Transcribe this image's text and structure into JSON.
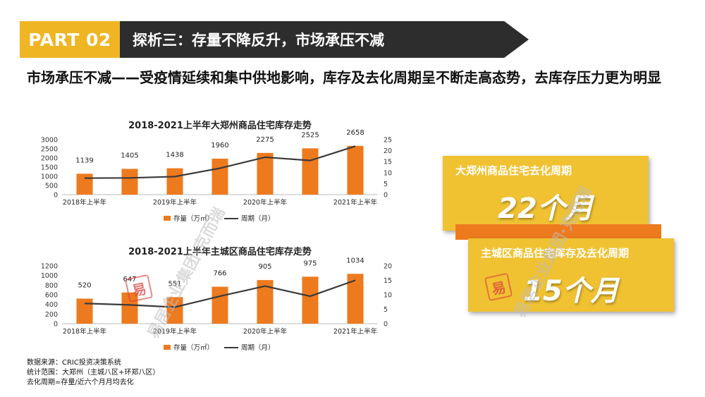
{
  "header": {
    "part": "PART 02",
    "title": "探析三：存量不降反升，市场承压不减"
  },
  "headline": "市场承压不减——受疫情延续和集中供地影响，库存及去化周期呈不断走高态势，去库存压力更为明显",
  "chart_data": [
    {
      "type": "bar",
      "title": "2018-2021上半年大郑州商品住宅库存走势",
      "categories": [
        "2018年上半年",
        "",
        "2019年上半年",
        "",
        "2020年上半年",
        "",
        "2021年上半年"
      ],
      "series": [
        {
          "name": "存量（万㎡）",
          "type": "bar",
          "axis": "left",
          "values": [
            1139,
            1405,
            1438,
            1960,
            2275,
            2525,
            2658
          ]
        },
        {
          "name": "周期（月）",
          "type": "line",
          "axis": "right",
          "values": [
            7.5,
            7.6,
            8.2,
            12,
            17,
            15.5,
            22
          ]
        }
      ],
      "y_left": {
        "min": 0,
        "max": 3000,
        "ticks": [
          0,
          500,
          1000,
          1500,
          2000,
          2500,
          3000
        ]
      },
      "y_right": {
        "min": 0,
        "max": 25,
        "ticks": [
          0,
          5,
          10,
          15,
          20,
          25
        ]
      },
      "colors": {
        "bar": "#ee7a1e",
        "line": "#3a3a3a"
      }
    },
    {
      "type": "bar",
      "title": "2018-2021上半年主城区商品住宅库存走势",
      "categories": [
        "2018年上半年",
        "",
        "2019年上半年",
        "",
        "2020年上半年",
        "",
        "2021年上半年"
      ],
      "series": [
        {
          "name": "存量（万㎡）",
          "type": "bar",
          "axis": "left",
          "values": [
            520,
            647,
            551,
            766,
            905,
            975,
            1034
          ]
        },
        {
          "name": "周期（月）",
          "type": "line",
          "axis": "right",
          "values": [
            7,
            6.5,
            5.7,
            9.5,
            13,
            9.5,
            15
          ]
        }
      ],
      "y_left": {
        "min": 0,
        "max": 1200,
        "ticks": [
          0,
          200,
          400,
          600,
          800,
          1000,
          1200
        ]
      },
      "y_right": {
        "min": 0,
        "max": 20,
        "ticks": [
          0,
          5,
          10,
          15,
          20
        ]
      },
      "colors": {
        "bar": "#ee7a1e",
        "line": "#3a3a3a"
      }
    }
  ],
  "cards": [
    {
      "title": "大郑州商品住宅去化周期",
      "value": "22个月"
    },
    {
      "title": "主城区商品住宅库存及去化周期",
      "value": "15个月"
    }
  ],
  "notes": [
    "数据来源：CRIC投资决策系统",
    "统计范围：大郑州（主城八区+环郑八区）",
    "去化周期=存量/近六个月月均去化"
  ],
  "watermark": "易居企业集团·克而瑞",
  "seal_text": "易",
  "colors": {
    "accent_yellow": "#f0b523",
    "card_yellow": "#f0c232",
    "orange": "#ee7a1e",
    "dark": "#2d2d2d"
  }
}
